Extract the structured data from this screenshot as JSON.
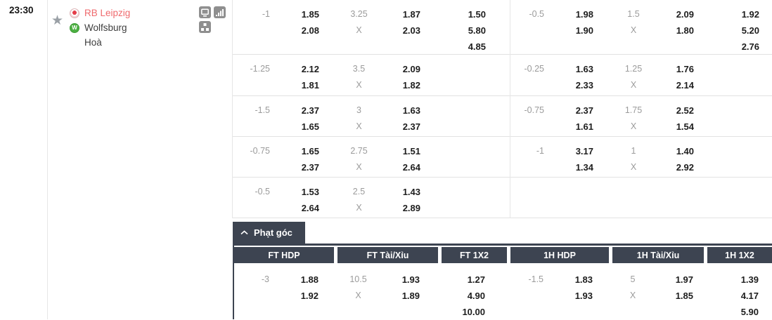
{
  "fixture": {
    "time": "23:30",
    "home_team": "RB Leipzig",
    "away_team": "Wolfsburg",
    "draw_label": "Hoà",
    "home_team_color": "#ef6a6d"
  },
  "odds_labels": {
    "x": "X"
  },
  "main_odds": {
    "rows": [
      {
        "ft": {
          "hdp_line": "-1",
          "hdp": [
            "1.85",
            "2.08"
          ],
          "ou_line": "3.25",
          "ou": [
            "1.87",
            "2.03"
          ],
          "x12": [
            "1.50",
            "5.80",
            "4.85"
          ]
        },
        "h1": {
          "hdp_line": "-0.5",
          "hdp": [
            "1.98",
            "1.90"
          ],
          "ou_line": "1.5",
          "ou": [
            "2.09",
            "1.80"
          ],
          "x12": [
            "1.92",
            "5.20",
            "2.76"
          ]
        }
      },
      {
        "ft": {
          "hdp_line": "-1.25",
          "hdp": [
            "2.12",
            "1.81"
          ],
          "ou_line": "3.5",
          "ou": [
            "2.09",
            "1.82"
          ],
          "x12": []
        },
        "h1": {
          "hdp_line": "-0.25",
          "hdp": [
            "1.63",
            "2.33"
          ],
          "ou_line": "1.25",
          "ou": [
            "1.76",
            "2.14"
          ],
          "x12": []
        }
      },
      {
        "ft": {
          "hdp_line": "-1.5",
          "hdp": [
            "2.37",
            "1.65"
          ],
          "ou_line": "3",
          "ou": [
            "1.63",
            "2.37"
          ],
          "x12": []
        },
        "h1": {
          "hdp_line": "-0.75",
          "hdp": [
            "2.37",
            "1.61"
          ],
          "ou_line": "1.75",
          "ou": [
            "2.52",
            "1.54"
          ],
          "x12": []
        }
      },
      {
        "ft": {
          "hdp_line": "-0.75",
          "hdp": [
            "1.65",
            "2.37"
          ],
          "ou_line": "2.75",
          "ou": [
            "1.51",
            "2.64"
          ],
          "x12": []
        },
        "h1": {
          "hdp_line": "-1",
          "hdp": [
            "3.17",
            "1.34"
          ],
          "ou_line": "1",
          "ou": [
            "1.40",
            "2.92"
          ],
          "x12": []
        }
      },
      {
        "ft": {
          "hdp_line": "-0.5",
          "hdp": [
            "1.53",
            "2.64"
          ],
          "ou_line": "2.5",
          "ou": [
            "1.43",
            "2.89"
          ],
          "x12": []
        },
        "h1": null
      }
    ]
  },
  "corner": {
    "title": "Phạt góc",
    "headers": [
      "FT HDP",
      "FT Tài/Xỉu",
      "FT 1X2",
      "1H HDP",
      "1H Tài/Xỉu",
      "1H 1X2"
    ],
    "row": {
      "ft": {
        "hdp_line": "-3",
        "hdp": [
          "1.88",
          "1.92"
        ],
        "ou_line": "10.5",
        "ou": [
          "1.93",
          "1.89"
        ],
        "x12": [
          "1.27",
          "4.90",
          "10.00"
        ]
      },
      "h1": {
        "hdp_line": "-1.5",
        "hdp": [
          "1.83",
          "1.93"
        ],
        "ou_line": "5",
        "ou": [
          "1.97",
          "1.85"
        ],
        "x12": [
          "1.39",
          "4.17",
          "5.90"
        ]
      }
    }
  },
  "colors": {
    "dark_header": "#3d4451",
    "muted_text": "#9b9b9b"
  }
}
